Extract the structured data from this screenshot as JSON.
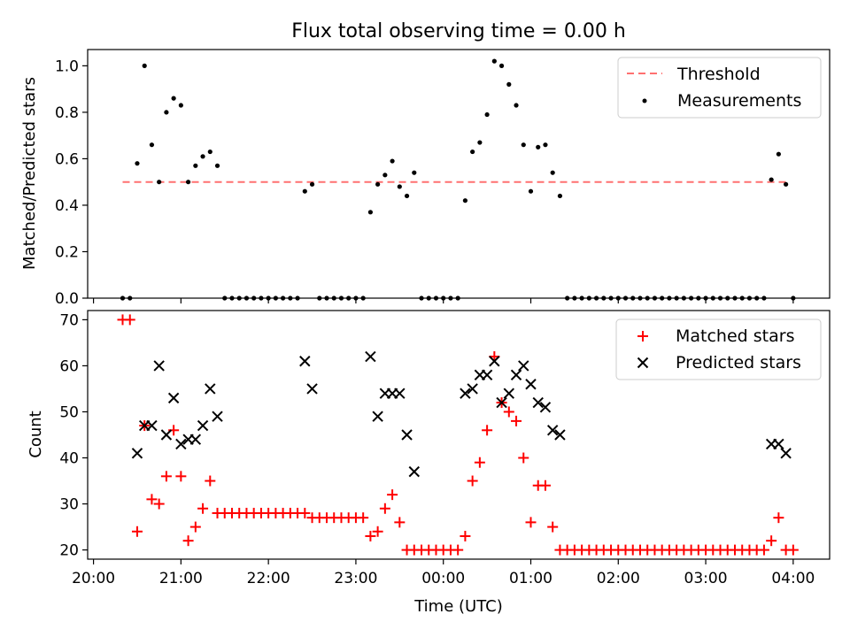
{
  "title": "Flux total observing time = 0.00 h",
  "colors": {
    "threshold": "#ff7070",
    "measurement": "#000000",
    "matched": "#ff0000",
    "predicted": "#000000"
  },
  "chart_data": [
    {
      "type": "scatter",
      "ylabel": "Matched/Predicted stars",
      "xlabel": "",
      "ylim": [
        0.0,
        1.07
      ],
      "y_ticks": [
        "0.0",
        "0.2",
        "0.4",
        "0.6",
        "0.8",
        "1.0"
      ],
      "grid": false,
      "legend_position": "top-right",
      "legend": [
        "Threshold",
        "Measurements"
      ],
      "threshold": {
        "name": "Threshold",
        "y": 0.5,
        "x_range": [
          "20:20",
          "03:55"
        ],
        "style": "dashed"
      },
      "series": [
        {
          "name": "Measurements",
          "points": [
            [
              "20:20",
              0.0
            ],
            [
              "20:25",
              0.0
            ],
            [
              "20:30",
              0.58
            ],
            [
              "20:35",
              1.0
            ],
            [
              "20:40",
              0.66
            ],
            [
              "20:45",
              0.5
            ],
            [
              "20:50",
              0.8
            ],
            [
              "20:55",
              0.86
            ],
            [
              "21:00",
              0.83
            ],
            [
              "21:05",
              0.5
            ],
            [
              "21:10",
              0.57
            ],
            [
              "21:15",
              0.61
            ],
            [
              "21:20",
              0.63
            ],
            [
              "21:25",
              0.57
            ],
            [
              "21:30",
              0.0
            ],
            [
              "21:35",
              0.0
            ],
            [
              "21:40",
              0.0
            ],
            [
              "21:45",
              0.0
            ],
            [
              "21:50",
              0.0
            ],
            [
              "21:55",
              0.0
            ],
            [
              "22:00",
              0.0
            ],
            [
              "22:05",
              0.0
            ],
            [
              "22:10",
              0.0
            ],
            [
              "22:15",
              0.0
            ],
            [
              "22:20",
              0.0
            ],
            [
              "22:25",
              0.46
            ],
            [
              "22:30",
              0.49
            ],
            [
              "22:35",
              0.0
            ],
            [
              "22:40",
              0.0
            ],
            [
              "22:45",
              0.0
            ],
            [
              "22:50",
              0.0
            ],
            [
              "22:55",
              0.0
            ],
            [
              "23:00",
              0.0
            ],
            [
              "23:05",
              0.0
            ],
            [
              "23:10",
              0.37
            ],
            [
              "23:15",
              0.49
            ],
            [
              "23:20",
              0.53
            ],
            [
              "23:25",
              0.59
            ],
            [
              "23:30",
              0.48
            ],
            [
              "23:35",
              0.44
            ],
            [
              "23:40",
              0.54
            ],
            [
              "23:45",
              0.0
            ],
            [
              "23:50",
              0.0
            ],
            [
              "23:55",
              0.0
            ],
            [
              "00:00",
              0.0
            ],
            [
              "00:05",
              0.0
            ],
            [
              "00:10",
              0.0
            ],
            [
              "00:15",
              0.42
            ],
            [
              "00:20",
              0.63
            ],
            [
              "00:25",
              0.67
            ],
            [
              "00:30",
              0.79
            ],
            [
              "00:35",
              1.02
            ],
            [
              "00:40",
              1.0
            ],
            [
              "00:45",
              0.92
            ],
            [
              "00:50",
              0.83
            ],
            [
              "00:55",
              0.66
            ],
            [
              "01:00",
              0.46
            ],
            [
              "01:05",
              0.65
            ],
            [
              "01:10",
              0.66
            ],
            [
              "01:15",
              0.54
            ],
            [
              "01:20",
              0.44
            ],
            [
              "01:25",
              0.0
            ],
            [
              "01:30",
              0.0
            ],
            [
              "01:35",
              0.0
            ],
            [
              "01:40",
              0.0
            ],
            [
              "01:45",
              0.0
            ],
            [
              "01:50",
              0.0
            ],
            [
              "01:55",
              0.0
            ],
            [
              "02:00",
              0.0
            ],
            [
              "02:05",
              0.0
            ],
            [
              "02:10",
              0.0
            ],
            [
              "02:15",
              0.0
            ],
            [
              "02:20",
              0.0
            ],
            [
              "02:25",
              0.0
            ],
            [
              "02:30",
              0.0
            ],
            [
              "02:35",
              0.0
            ],
            [
              "02:40",
              0.0
            ],
            [
              "02:45",
              0.0
            ],
            [
              "02:50",
              0.0
            ],
            [
              "02:55",
              0.0
            ],
            [
              "03:00",
              0.0
            ],
            [
              "03:05",
              0.0
            ],
            [
              "03:10",
              0.0
            ],
            [
              "03:15",
              0.0
            ],
            [
              "03:20",
              0.0
            ],
            [
              "03:25",
              0.0
            ],
            [
              "03:30",
              0.0
            ],
            [
              "03:35",
              0.0
            ],
            [
              "03:40",
              0.0
            ],
            [
              "03:45",
              0.51
            ],
            [
              "03:50",
              0.62
            ],
            [
              "03:55",
              0.49
            ],
            [
              "04:00",
              0.0
            ]
          ]
        }
      ]
    },
    {
      "type": "scatter",
      "ylabel": "Count",
      "xlabel": "Time (UTC)",
      "ylim": [
        18,
        72
      ],
      "y_ticks": [
        "20",
        "30",
        "40",
        "50",
        "60",
        "70"
      ],
      "x_ticks": [
        "20:00",
        "21:00",
        "22:00",
        "23:00",
        "00:00",
        "01:00",
        "02:00",
        "03:00",
        "04:00"
      ],
      "x_range": [
        "19:56",
        "04:25"
      ],
      "grid": false,
      "legend_position": "top-right",
      "legend": [
        "Matched stars",
        "Predicted stars"
      ],
      "series": [
        {
          "name": "Matched stars",
          "marker": "+",
          "points": [
            [
              "20:20",
              70
            ],
            [
              "20:25",
              70
            ],
            [
              "20:30",
              24
            ],
            [
              "20:35",
              47
            ],
            [
              "20:40",
              31
            ],
            [
              "20:45",
              30
            ],
            [
              "20:50",
              36
            ],
            [
              "20:55",
              46
            ],
            [
              "21:00",
              36
            ],
            [
              "21:05",
              22
            ],
            [
              "21:10",
              25
            ],
            [
              "21:15",
              29
            ],
            [
              "21:20",
              35
            ],
            [
              "21:25",
              28
            ],
            [
              "21:30",
              28
            ],
            [
              "21:35",
              28
            ],
            [
              "21:40",
              28
            ],
            [
              "21:45",
              28
            ],
            [
              "21:50",
              28
            ],
            [
              "21:55",
              28
            ],
            [
              "22:00",
              28
            ],
            [
              "22:05",
              28
            ],
            [
              "22:10",
              28
            ],
            [
              "22:15",
              28
            ],
            [
              "22:20",
              28
            ],
            [
              "22:25",
              28
            ],
            [
              "22:30",
              27
            ],
            [
              "22:35",
              27
            ],
            [
              "22:40",
              27
            ],
            [
              "22:45",
              27
            ],
            [
              "22:50",
              27
            ],
            [
              "22:55",
              27
            ],
            [
              "23:00",
              27
            ],
            [
              "23:05",
              27
            ],
            [
              "23:10",
              23
            ],
            [
              "23:15",
              24
            ],
            [
              "23:20",
              29
            ],
            [
              "23:25",
              32
            ],
            [
              "23:30",
              26
            ],
            [
              "23:35",
              20
            ],
            [
              "23:40",
              20
            ],
            [
              "23:45",
              20
            ],
            [
              "23:50",
              20
            ],
            [
              "23:55",
              20
            ],
            [
              "00:00",
              20
            ],
            [
              "00:05",
              20
            ],
            [
              "00:10",
              20
            ],
            [
              "00:15",
              23
            ],
            [
              "00:20",
              35
            ],
            [
              "00:25",
              39
            ],
            [
              "00:30",
              46
            ],
            [
              "00:35",
              62
            ],
            [
              "00:40",
              52
            ],
            [
              "00:45",
              50
            ],
            [
              "00:50",
              48
            ],
            [
              "00:55",
              40
            ],
            [
              "01:00",
              26
            ],
            [
              "01:05",
              34
            ],
            [
              "01:10",
              34
            ],
            [
              "01:15",
              25
            ],
            [
              "01:20",
              20
            ],
            [
              "01:25",
              20
            ],
            [
              "01:30",
              20
            ],
            [
              "01:35",
              20
            ],
            [
              "01:40",
              20
            ],
            [
              "01:45",
              20
            ],
            [
              "01:50",
              20
            ],
            [
              "01:55",
              20
            ],
            [
              "02:00",
              20
            ],
            [
              "02:05",
              20
            ],
            [
              "02:10",
              20
            ],
            [
              "02:15",
              20
            ],
            [
              "02:20",
              20
            ],
            [
              "02:25",
              20
            ],
            [
              "02:30",
              20
            ],
            [
              "02:35",
              20
            ],
            [
              "02:40",
              20
            ],
            [
              "02:45",
              20
            ],
            [
              "02:50",
              20
            ],
            [
              "02:55",
              20
            ],
            [
              "03:00",
              20
            ],
            [
              "03:05",
              20
            ],
            [
              "03:10",
              20
            ],
            [
              "03:15",
              20
            ],
            [
              "03:20",
              20
            ],
            [
              "03:25",
              20
            ],
            [
              "03:30",
              20
            ],
            [
              "03:35",
              20
            ],
            [
              "03:40",
              20
            ],
            [
              "03:45",
              22
            ],
            [
              "03:50",
              27
            ],
            [
              "03:55",
              20
            ],
            [
              "04:00",
              20
            ]
          ]
        },
        {
          "name": "Predicted stars",
          "marker": "x",
          "points": [
            [
              "20:30",
              41
            ],
            [
              "20:35",
              47
            ],
            [
              "20:40",
              47
            ],
            [
              "20:45",
              60
            ],
            [
              "20:50",
              45
            ],
            [
              "20:55",
              53
            ],
            [
              "21:00",
              43
            ],
            [
              "21:05",
              44
            ],
            [
              "21:10",
              44
            ],
            [
              "21:15",
              47
            ],
            [
              "21:20",
              55
            ],
            [
              "21:25",
              49
            ],
            [
              "22:25",
              61
            ],
            [
              "22:30",
              55
            ],
            [
              "23:10",
              62
            ],
            [
              "23:15",
              49
            ],
            [
              "23:20",
              54
            ],
            [
              "23:25",
              54
            ],
            [
              "23:30",
              54
            ],
            [
              "23:35",
              45
            ],
            [
              "23:40",
              37
            ],
            [
              "00:15",
              54
            ],
            [
              "00:20",
              55
            ],
            [
              "00:25",
              58
            ],
            [
              "00:30",
              58
            ],
            [
              "00:35",
              61
            ],
            [
              "00:40",
              52
            ],
            [
              "00:45",
              54
            ],
            [
              "00:50",
              58
            ],
            [
              "00:55",
              60
            ],
            [
              "01:00",
              56
            ],
            [
              "01:05",
              52
            ],
            [
              "01:10",
              51
            ],
            [
              "01:15",
              46
            ],
            [
              "01:20",
              45
            ],
            [
              "03:45",
              43
            ],
            [
              "03:50",
              43
            ],
            [
              "03:55",
              41
            ]
          ]
        }
      ]
    }
  ]
}
